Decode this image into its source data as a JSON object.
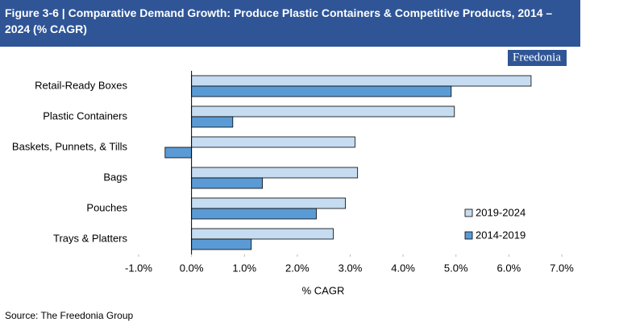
{
  "chart_data": {
    "type": "barh",
    "title": "Figure 3-6 | Comparative Demand Growth: Produce Plastic Containers & Competitive Products, 2014 – 2024 (% CAGR)",
    "logo": "Freedonia",
    "categories": [
      "Retail-Ready Boxes",
      "Plastic Containers",
      "Baskets, Punnets, & Tills",
      "Bags",
      "Pouches",
      "Trays & Platters"
    ],
    "series": [
      {
        "name": "2019-2024",
        "color": "#c5dcf1",
        "values": [
          6.42,
          4.97,
          3.09,
          3.14,
          2.91,
          2.68
        ]
      },
      {
        "name": "2014-2019",
        "color": "#5b9bd5",
        "values": [
          4.91,
          0.78,
          -0.5,
          1.34,
          2.36,
          1.13
        ]
      }
    ],
    "xlabel": "% CAGR",
    "xlim": [
      -1,
      7
    ],
    "xticks": [
      {
        "value": -1,
        "label": "-1.0%"
      },
      {
        "value": 0,
        "label": "0.0%"
      },
      {
        "value": 1,
        "label": "1.0%"
      },
      {
        "value": 2,
        "label": "2.0%"
      },
      {
        "value": 3,
        "label": "3.0%"
      },
      {
        "value": 4,
        "label": "4.0%"
      },
      {
        "value": 5,
        "label": "5.0%"
      },
      {
        "value": 6,
        "label": "6.0%"
      },
      {
        "value": 7,
        "label": "7.0%"
      }
    ],
    "legend": "lower-right",
    "source": "Source: The Freedonia Group"
  }
}
